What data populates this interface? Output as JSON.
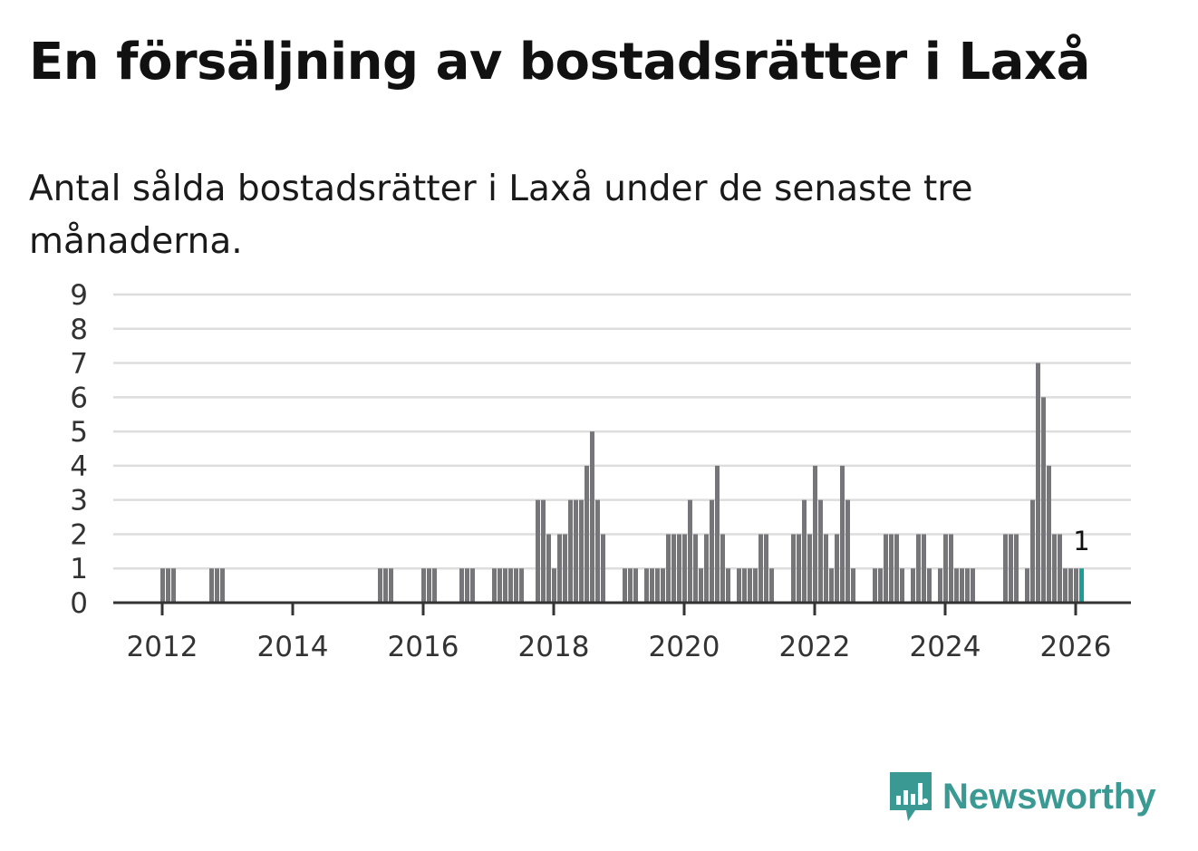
{
  "header": {
    "title": "En försäljning av bostadsrätter i Laxå",
    "subtitle": "Antal sålda bostadsrätter i Laxå under de senaste tre månaderna."
  },
  "brand": {
    "name": "Newsworthy",
    "color": "#3a9a93"
  },
  "colors": {
    "bar": "#75757a",
    "highlight": "#1a9e96",
    "grid": "#dddddd",
    "axis": "#333333"
  },
  "chart_data": {
    "type": "bar",
    "title": "En försäljning av bostadsrätter i Laxå",
    "subtitle": "Antal sålda bostadsrätter i Laxå under de senaste tre månaderna.",
    "xlabel": "",
    "ylabel": "",
    "x_start": "2012-01",
    "x_step": "month",
    "ylim": [
      0,
      9
    ],
    "yticks": [
      "0",
      "1",
      "2",
      "3",
      "4",
      "5",
      "6",
      "7",
      "8",
      "9"
    ],
    "xticks": [
      "2012",
      "2014",
      "2016",
      "2018",
      "2020",
      "2022",
      "2024",
      "2026"
    ],
    "grid": true,
    "values": [
      1,
      1,
      1,
      0,
      0,
      0,
      0,
      0,
      0,
      1,
      1,
      1,
      0,
      0,
      0,
      0,
      0,
      0,
      0,
      0,
      0,
      0,
      0,
      0,
      0,
      0,
      0,
      0,
      0,
      0,
      0,
      0,
      0,
      0,
      0,
      0,
      0,
      0,
      0,
      0,
      1,
      1,
      1,
      0,
      0,
      0,
      0,
      0,
      1,
      1,
      1,
      0,
      0,
      0,
      0,
      1,
      1,
      1,
      0,
      0,
      0,
      1,
      1,
      1,
      1,
      1,
      1,
      0,
      0,
      3,
      3,
      2,
      1,
      2,
      2,
      3,
      3,
      3,
      4,
      5,
      3,
      2,
      0,
      0,
      0,
      1,
      1,
      1,
      0,
      1,
      1,
      1,
      1,
      2,
      2,
      2,
      2,
      3,
      2,
      1,
      2,
      3,
      4,
      2,
      1,
      0,
      1,
      1,
      1,
      1,
      2,
      2,
      1,
      0,
      0,
      0,
      2,
      2,
      3,
      2,
      4,
      3,
      2,
      1,
      2,
      4,
      3,
      1,
      0,
      0,
      0,
      1,
      1,
      2,
      2,
      2,
      1,
      0,
      1,
      2,
      2,
      1,
      0,
      1,
      2,
      2,
      1,
      1,
      1,
      1,
      0,
      0,
      0,
      0,
      0,
      2,
      2,
      2,
      0,
      1,
      3,
      7,
      6,
      4,
      2,
      2,
      1,
      1,
      1,
      1
    ],
    "highlight_last": true,
    "annotation": "1"
  }
}
